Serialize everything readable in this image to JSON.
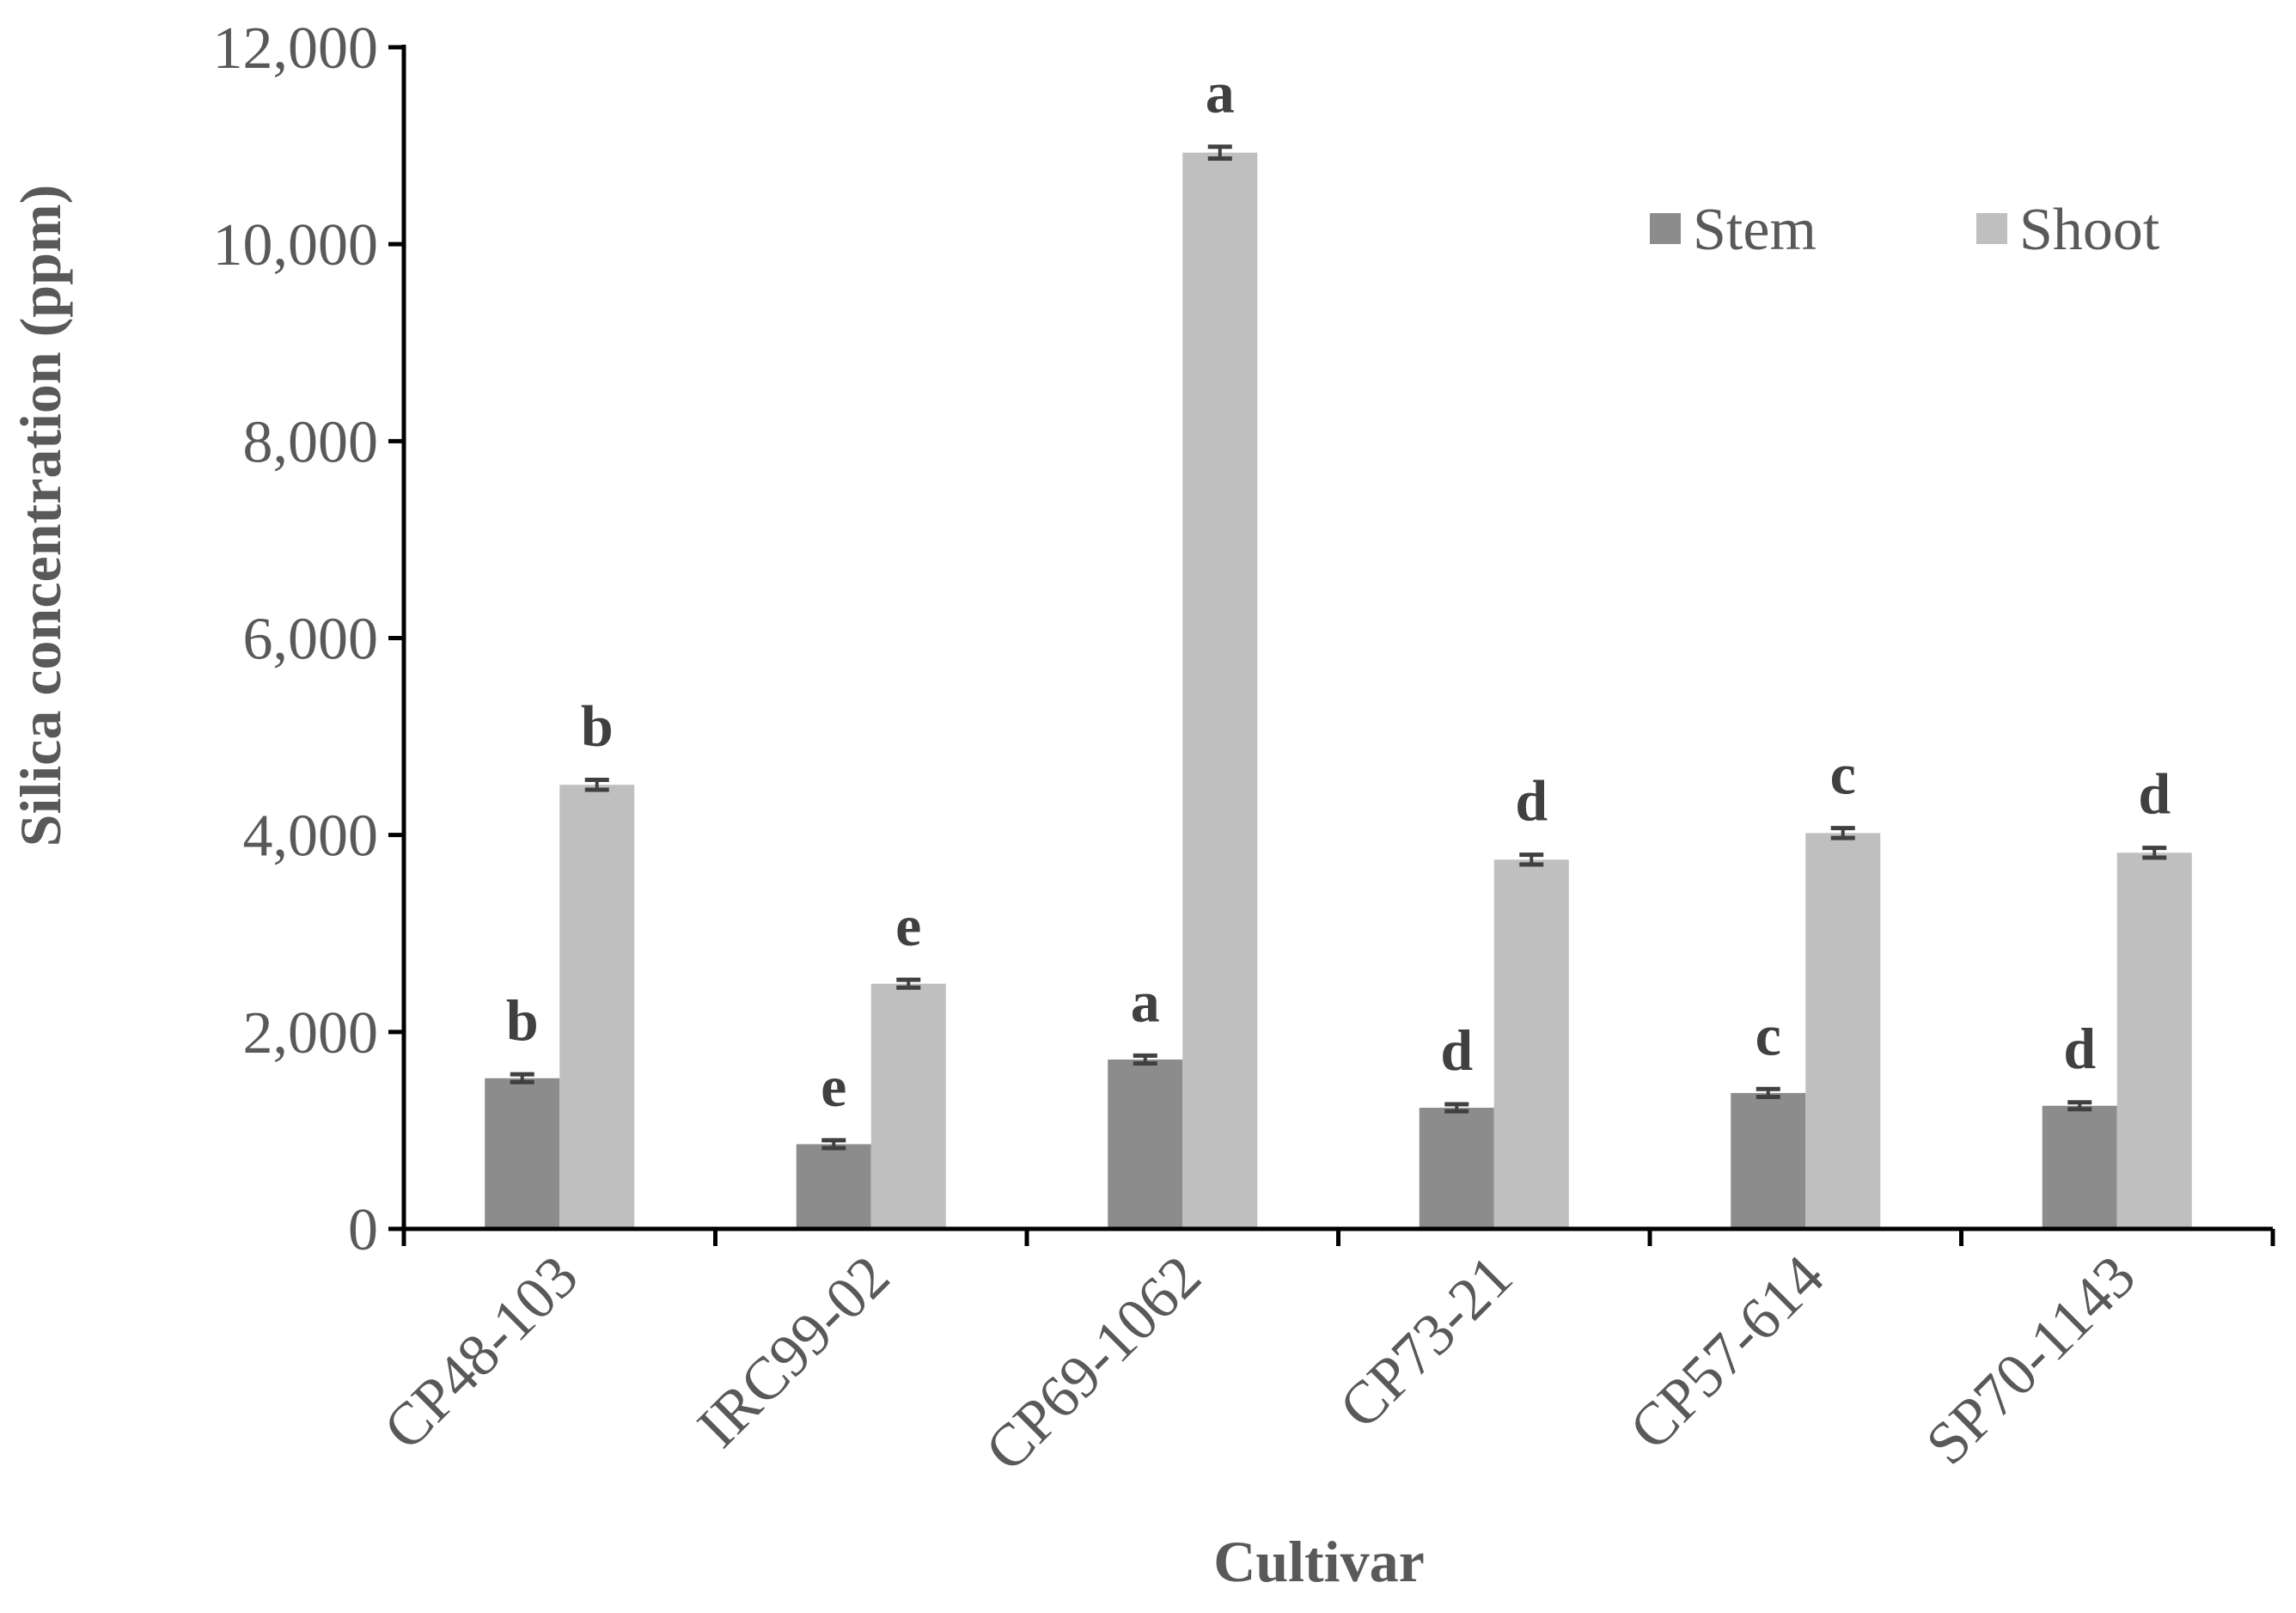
{
  "chart_data": {
    "type": "bar",
    "xlabel": "Cultivar",
    "ylabel": "Silica concentration (ppm)",
    "ylim": [
      0,
      12000
    ],
    "ytick_step": 2000,
    "ytick_labels": [
      "0",
      "2,000",
      "4,000",
      "6,000",
      "8,000",
      "10,000",
      "12,000"
    ],
    "categories": [
      "CP48-103",
      "IRC99-02",
      "CP69-1062",
      "CP73-21",
      "CP57-614",
      "SP70-1143"
    ],
    "legend_position": "top-right",
    "grid": false,
    "series": [
      {
        "name": "Stem",
        "color": "#8c8c8c",
        "values": [
          1530,
          860,
          1720,
          1230,
          1380,
          1250
        ],
        "errors": [
          40,
          40,
          40,
          35,
          40,
          35
        ],
        "labels": [
          "b",
          "e",
          "a",
          "d",
          "c",
          "d"
        ]
      },
      {
        "name": "Shoot",
        "color": "#bfbfbf",
        "values": [
          4510,
          2490,
          10930,
          3750,
          4020,
          3820
        ],
        "errors": [
          50,
          40,
          60,
          50,
          50,
          50
        ],
        "labels": [
          "b",
          "e",
          "a",
          "d",
          "c",
          "d"
        ]
      }
    ]
  }
}
